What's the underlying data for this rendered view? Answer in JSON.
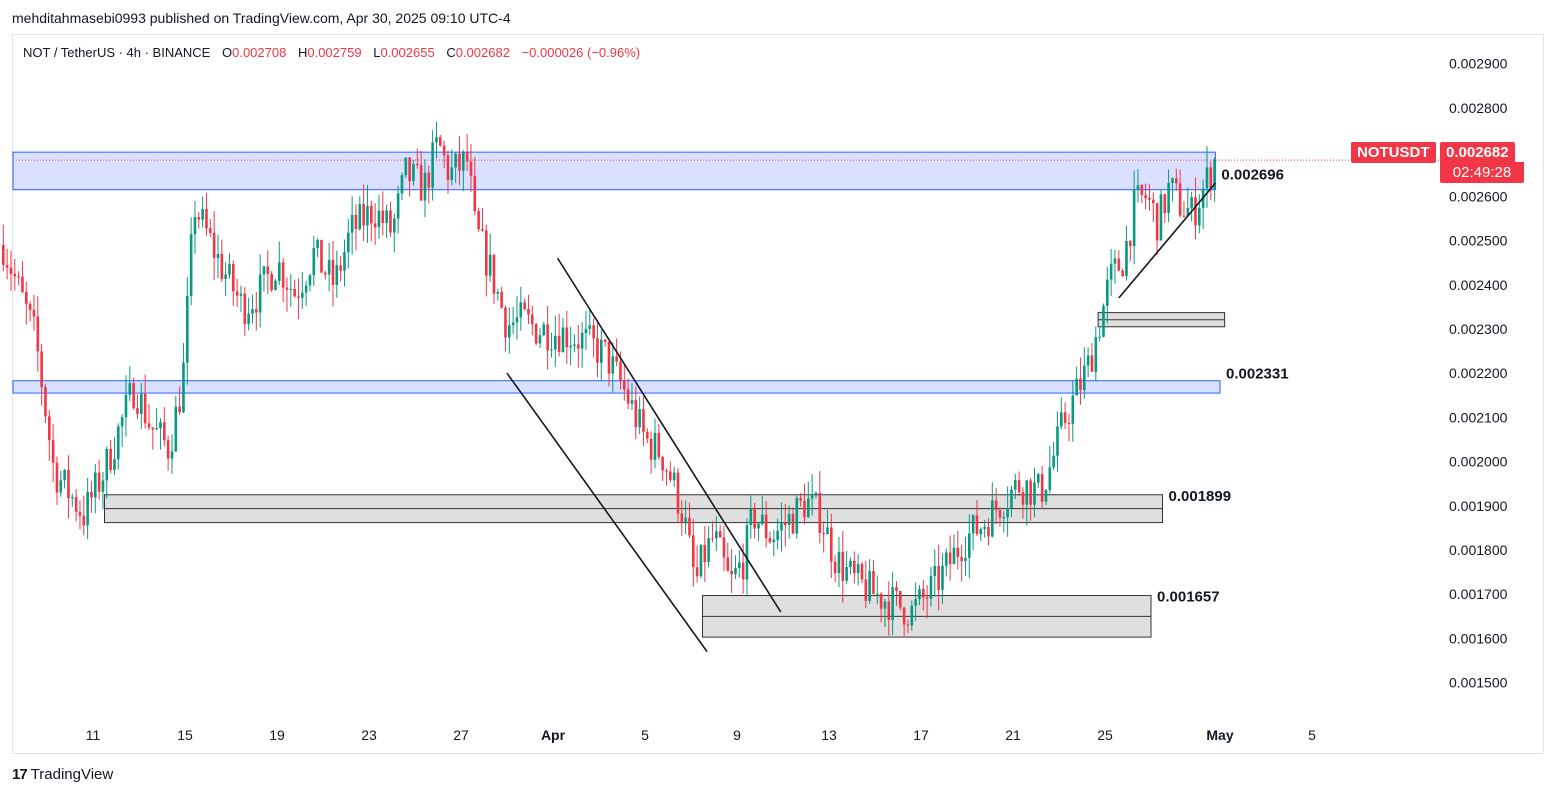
{
  "header": {
    "published_line": "mehditahmasebi0993 published on TradingView.com, Apr 30, 2025 09:10 UTC-4"
  },
  "legend": {
    "symbol": "NOT / TetherUS · 4h · BINANCE",
    "open_label": "O",
    "open": "0.002708",
    "high_label": "H",
    "high": "0.002759",
    "low_label": "L",
    "low": "0.002655",
    "close_label": "C",
    "close": "0.002682",
    "change": "−0.000026 (−0.96%)"
  },
  "price_tag": {
    "ticker": "NOTUSDT",
    "price": "0.002682",
    "countdown": "02:49:28"
  },
  "footer": {
    "brand": "TradingView",
    "logo_text": "17"
  },
  "colors": {
    "up": "#089981",
    "down": "#f23645",
    "resistance_fill": "#d6ddff",
    "resistance_edge": "#2962ff",
    "zone_fill": "#d9d9d9",
    "zone_edge": "#333333"
  },
  "chart_data": {
    "type": "candlestick",
    "title": "NOT / TetherUS · 4h · BINANCE",
    "ylim": [
      0.00142,
      0.002965
    ],
    "y_ticks": [
      "0.001500",
      "0.001600",
      "0.001700",
      "0.001800",
      "0.001900",
      "0.002000",
      "0.002100",
      "0.002200",
      "0.002300",
      "0.002400",
      "0.002500",
      "0.002600",
      "0.002700",
      "0.002800",
      "0.002900"
    ],
    "x_ticks": [
      {
        "label": "11",
        "day": 11
      },
      {
        "label": "15",
        "day": 15
      },
      {
        "label": "19",
        "day": 19
      },
      {
        "label": "23",
        "day": 23
      },
      {
        "label": "27",
        "day": 27
      },
      {
        "label": "Apr",
        "day": 31
      },
      {
        "label": "5",
        "day": 35
      },
      {
        "label": "9",
        "day": 39
      },
      {
        "label": "13",
        "day": 43
      },
      {
        "label": "17",
        "day": 47
      },
      {
        "label": "21",
        "day": 51
      },
      {
        "label": "25",
        "day": 55
      },
      {
        "label": "May",
        "day": 60
      },
      {
        "label": "5",
        "day": 64
      }
    ],
    "x_start_day": 7.1,
    "x_end_day": 59.8,
    "price_path": [
      [
        7.1,
        0.00249
      ],
      [
        8.5,
        0.00228
      ],
      [
        9.3,
        0.00198
      ],
      [
        10.6,
        0.00188
      ],
      [
        11.5,
        0.00198
      ],
      [
        12.8,
        0.00217
      ],
      [
        13.5,
        0.00208
      ],
      [
        14.3,
        0.00203
      ],
      [
        14.9,
        0.00218
      ],
      [
        15.4,
        0.00258
      ],
      [
        16.5,
        0.00245
      ],
      [
        17.5,
        0.00235
      ],
      [
        18.2,
        0.00238
      ],
      [
        19.0,
        0.00245
      ],
      [
        19.8,
        0.00238
      ],
      [
        20.6,
        0.00247
      ],
      [
        21.5,
        0.0024
      ],
      [
        22.2,
        0.00252
      ],
      [
        23.2,
        0.00257
      ],
      [
        24.0,
        0.00252
      ],
      [
        24.6,
        0.00265
      ],
      [
        25.4,
        0.00262
      ],
      [
        26.0,
        0.00272
      ],
      [
        26.5,
        0.00265
      ],
      [
        27.3,
        0.00268
      ],
      [
        27.6,
        0.00253
      ],
      [
        28.3,
        0.00243
      ],
      [
        29.0,
        0.00231
      ],
      [
        29.7,
        0.00232
      ],
      [
        30.3,
        0.0023
      ],
      [
        31.5,
        0.00229
      ],
      [
        32.5,
        0.00227
      ],
      [
        33.3,
        0.00224
      ],
      [
        34.2,
        0.00215
      ],
      [
        35.0,
        0.00205
      ],
      [
        35.7,
        0.00202
      ],
      [
        36.3,
        0.00194
      ],
      [
        36.7,
        0.00187
      ],
      [
        37.2,
        0.00172
      ],
      [
        37.5,
        0.00178
      ],
      [
        38.0,
        0.00183
      ],
      [
        38.7,
        0.00172
      ],
      [
        39.3,
        0.00178
      ],
      [
        39.7,
        0.00188
      ],
      [
        40.5,
        0.00183
      ],
      [
        41.3,
        0.00187
      ],
      [
        42.0,
        0.00191
      ],
      [
        42.6,
        0.00188
      ],
      [
        43.3,
        0.00178
      ],
      [
        44.1,
        0.00173
      ],
      [
        45.0,
        0.0017
      ],
      [
        45.8,
        0.00168
      ],
      [
        46.6,
        0.00166
      ],
      [
        47.3,
        0.0017
      ],
      [
        48.0,
        0.00175
      ],
      [
        48.8,
        0.00182
      ],
      [
        49.7,
        0.00186
      ],
      [
        50.5,
        0.00191
      ],
      [
        51.3,
        0.00195
      ],
      [
        52.2,
        0.00193
      ],
      [
        52.7,
        0.002
      ],
      [
        53.2,
        0.00209
      ],
      [
        53.8,
        0.00216
      ],
      [
        54.3,
        0.00222
      ],
      [
        54.8,
        0.00232
      ],
      [
        55.2,
        0.00241
      ],
      [
        55.8,
        0.00246
      ],
      [
        56.3,
        0.00258
      ],
      [
        56.8,
        0.0026
      ],
      [
        57.3,
        0.00254
      ],
      [
        57.8,
        0.00262
      ],
      [
        58.3,
        0.00258
      ],
      [
        58.8,
        0.00256
      ],
      [
        59.3,
        0.00262
      ],
      [
        59.8,
        0.002682
      ]
    ],
    "zones": [
      {
        "kind": "resistance",
        "from_day": 7.1,
        "to_day": 59.8,
        "top": 0.0027,
        "bottom": 0.002615,
        "label": "0.002696"
      },
      {
        "kind": "support",
        "from_day": 7.1,
        "to_day": 60.0,
        "top": 0.002183,
        "bottom": 0.002155,
        "label": "0.002331"
      },
      {
        "kind": "gray",
        "from_day": 11.5,
        "to_day": 57.5,
        "top": 0.001925,
        "bottom": 0.001862,
        "label": "0.001899"
      },
      {
        "kind": "gray",
        "from_day": 37.5,
        "to_day": 57.0,
        "top": 0.001697,
        "bottom": 0.001603,
        "label": "0.001657"
      },
      {
        "kind": "gray",
        "from_day": 54.7,
        "to_day": 60.2,
        "top": 0.002337,
        "bottom": 0.002305,
        "label": ""
      }
    ],
    "trend_lines": [
      {
        "from": [
          29.0,
          0.0022
        ],
        "to": [
          37.7,
          0.00157
        ]
      },
      {
        "from": [
          31.2,
          0.00246
        ],
        "to": [
          40.9,
          0.00166
        ]
      },
      {
        "from": [
          55.6,
          0.00237
        ],
        "to": [
          59.8,
          0.00263
        ]
      }
    ],
    "last_price": 0.002682
  }
}
